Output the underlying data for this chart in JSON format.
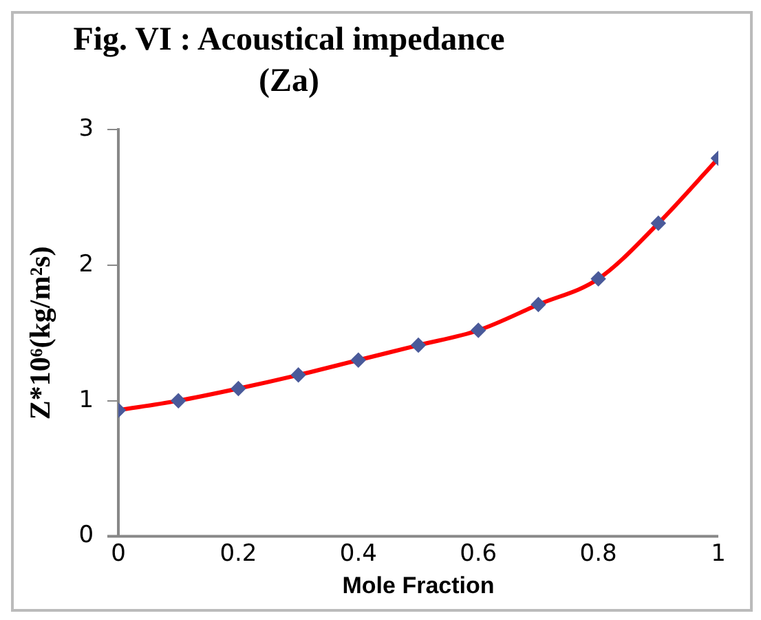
{
  "chart_data": {
    "type": "line",
    "title": "Fig. VI : Acoustical impedance (Za)",
    "xlabel": "Mole Fraction",
    "ylabel": "Z*10⁶(kg/m²s)",
    "x": [
      0,
      0.1,
      0.2,
      0.3,
      0.4,
      0.5,
      0.6,
      0.7,
      0.8,
      0.9,
      1
    ],
    "series": [
      {
        "color": "#ff0000",
        "values": [
          0.93,
          1.0,
          1.09,
          1.19,
          1.3,
          1.41,
          1.52,
          1.71,
          1.9,
          2.31,
          2.79
        ]
      }
    ],
    "xlim": [
      0,
      1
    ],
    "xticks": [
      0,
      0.2,
      0.4,
      0.6,
      0.8,
      1
    ],
    "ylim": [
      0,
      3
    ],
    "yticks": [
      0,
      1,
      2,
      3
    ],
    "grid": false,
    "legend": false,
    "marker": "diamond",
    "line_style": "solid"
  }
}
